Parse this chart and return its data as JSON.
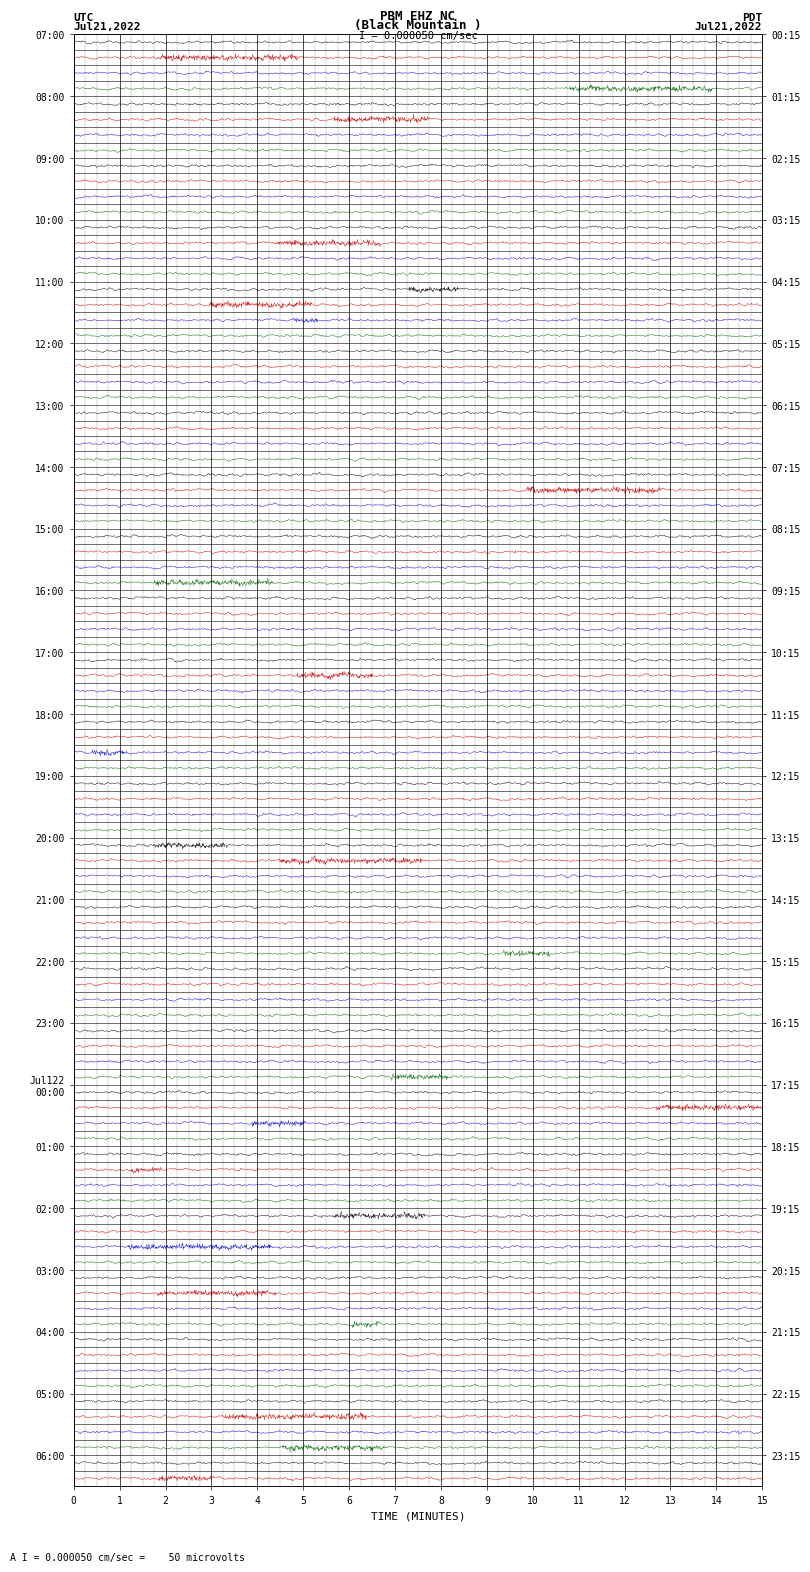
{
  "title_line1": "PBM EHZ NC",
  "title_line2": "(Black Mountain )",
  "scale_text": "I = 0.000050 cm/sec",
  "left_header1": "UTC",
  "left_header2": "Jul21,2022",
  "right_header1": "PDT",
  "right_header2": "Jul21,2022",
  "xlabel": "TIME (MINUTES)",
  "footer": "A I = 0.000050 cm/sec =    50 microvolts",
  "utc_tick_labels": [
    "07:00",
    "08:00",
    "09:00",
    "10:00",
    "11:00",
    "12:00",
    "13:00",
    "14:00",
    "15:00",
    "16:00",
    "17:00",
    "18:00",
    "19:00",
    "20:00",
    "21:00",
    "22:00",
    "23:00",
    "Jul122\n00:00",
    "01:00",
    "02:00",
    "03:00",
    "04:00",
    "05:00",
    "06:00"
  ],
  "pdt_tick_labels": [
    "00:15",
    "01:15",
    "02:15",
    "03:15",
    "04:15",
    "05:15",
    "06:15",
    "07:15",
    "08:15",
    "09:15",
    "10:15",
    "11:15",
    "12:15",
    "13:15",
    "14:15",
    "15:15",
    "16:15",
    "17:15",
    "18:15",
    "19:15",
    "20:15",
    "21:15",
    "22:15",
    "23:15"
  ],
  "num_rows": 94,
  "rows_per_hour": 4,
  "minutes": 15,
  "background_color": "#ffffff",
  "row_colors_cycle": [
    "#000000",
    "#cc0000",
    "#0000cc",
    "#006600"
  ],
  "noise_amplitude": 0.04,
  "seed": 12345
}
